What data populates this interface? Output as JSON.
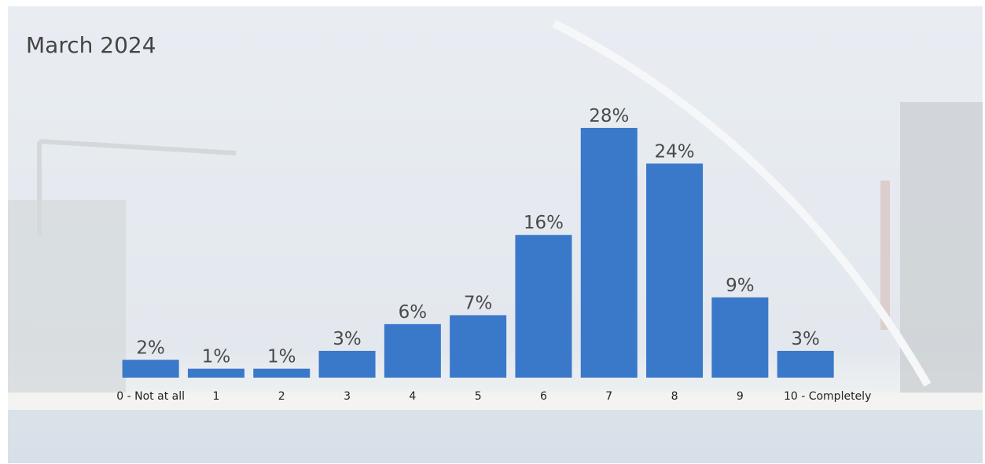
{
  "chart_data": {
    "type": "bar",
    "title": "March 2024",
    "categories": [
      "0 - Not at all",
      "1",
      "2",
      "3",
      "4",
      "5",
      "6",
      "7",
      "8",
      "9",
      "10 - Completely"
    ],
    "values": [
      2,
      1,
      1,
      3,
      6,
      7,
      16,
      28,
      24,
      9,
      3
    ],
    "value_labels": [
      "2%",
      "1%",
      "1%",
      "3%",
      "6%",
      "7%",
      "16%",
      "28%",
      "24%",
      "9%",
      "3%"
    ],
    "color": "#3a78c9"
  }
}
